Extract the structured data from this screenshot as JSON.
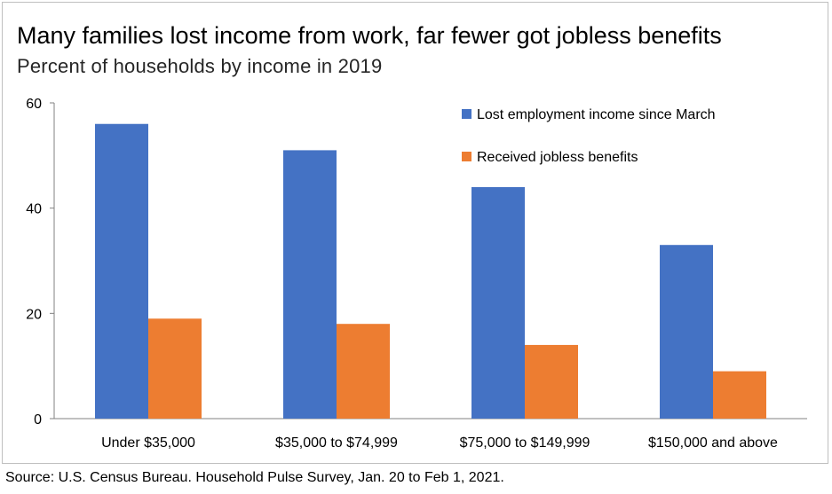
{
  "title": "Many families lost income from work, far fewer got jobless benefits",
  "subtitle": "Percent of households by income in 2019",
  "source": "Source: U.S. Census Bureau. Household Pulse Survey, Jan. 20 to Feb 1, 2021.",
  "chart_data": {
    "type": "bar",
    "categories": [
      "Under $35,000",
      "$35,000 to $74,999",
      "$75,000 to $149,999",
      "$150,000 and above"
    ],
    "series": [
      {
        "name": "Lost employment income since March",
        "color": "#4472c4",
        "values": [
          56,
          51,
          44,
          33
        ]
      },
      {
        "name": "Received jobless benefits",
        "color": "#ed7d31",
        "values": [
          19,
          18,
          14,
          9
        ]
      }
    ],
    "ylim": [
      0,
      60
    ],
    "yticks": [
      0,
      20,
      40,
      60
    ],
    "legend_position": "top-right",
    "grid": false
  }
}
